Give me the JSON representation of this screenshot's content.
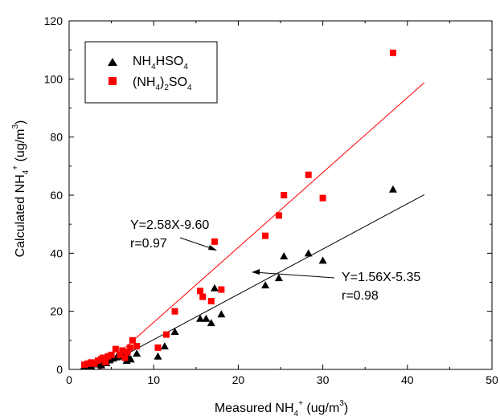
{
  "chart_data": {
    "type": "scatter",
    "xlabel": "Measured NH4+ (ug/m3)",
    "ylabel": "Calculated NH4+ (ug/m3)",
    "xlim": [
      0,
      50
    ],
    "ylim": [
      0,
      120
    ],
    "xticks": [
      0,
      10,
      20,
      30,
      40,
      50
    ],
    "yticks": [
      0,
      20,
      40,
      60,
      80,
      100,
      120
    ],
    "grid": false,
    "legend_position": "top-left",
    "series": [
      {
        "name": "NH4HSO4",
        "color": "#000000",
        "marker": "triangle",
        "points": [
          [
            1.8,
            1.2
          ],
          [
            2.2,
            1.5
          ],
          [
            2.6,
            1.2
          ],
          [
            3.0,
            1.8
          ],
          [
            3.4,
            2.0
          ],
          [
            3.8,
            1.5
          ],
          [
            4.1,
            2.5
          ],
          [
            4.4,
            2.2
          ],
          [
            4.8,
            3.2
          ],
          [
            5.2,
            3.8
          ],
          [
            5.6,
            4.2
          ],
          [
            6.0,
            5.0
          ],
          [
            6.4,
            4.5
          ],
          [
            6.8,
            3.0
          ],
          [
            7.0,
            4.2
          ],
          [
            7.3,
            3.5
          ],
          [
            8.0,
            5.5
          ],
          [
            10.5,
            4.5
          ],
          [
            11.3,
            8.0
          ],
          [
            12.5,
            13.0
          ],
          [
            15.5,
            17.5
          ],
          [
            16.2,
            17.5
          ],
          [
            16.8,
            16.0
          ],
          [
            17.2,
            28.0
          ],
          [
            18.0,
            19.0
          ],
          [
            23.2,
            29.0
          ],
          [
            24.8,
            31.5
          ],
          [
            25.4,
            39.0
          ],
          [
            28.3,
            40.0
          ],
          [
            30.0,
            37.5
          ],
          [
            38.3,
            62.0
          ]
        ]
      },
      {
        "name": "(NH4)2SO4",
        "color": "#ff0000",
        "marker": "square",
        "points": [
          [
            1.8,
            1.6
          ],
          [
            2.2,
            2.0
          ],
          [
            2.6,
            2.4
          ],
          [
            3.0,
            2.0
          ],
          [
            3.4,
            3.0
          ],
          [
            3.8,
            3.5
          ],
          [
            4.0,
            4.0
          ],
          [
            4.3,
            2.5
          ],
          [
            4.6,
            4.5
          ],
          [
            5.0,
            5.0
          ],
          [
            5.5,
            7.0
          ],
          [
            6.0,
            5.0
          ],
          [
            6.3,
            6.5
          ],
          [
            6.6,
            4.0
          ],
          [
            6.9,
            6.0
          ],
          [
            7.2,
            7.5
          ],
          [
            7.5,
            10.0
          ],
          [
            8.0,
            8.0
          ],
          [
            10.5,
            7.5
          ],
          [
            11.5,
            12.0
          ],
          [
            12.5,
            20.0
          ],
          [
            15.5,
            27.0
          ],
          [
            15.8,
            25.0
          ],
          [
            16.8,
            23.5
          ],
          [
            17.2,
            44.0
          ],
          [
            18.0,
            27.5
          ],
          [
            23.2,
            46.0
          ],
          [
            24.8,
            53.0
          ],
          [
            25.4,
            60.0
          ],
          [
            28.3,
            67.0
          ],
          [
            30.0,
            59.0
          ],
          [
            38.3,
            109.0
          ]
        ]
      }
    ],
    "fit_lines": [
      {
        "series": "NH4HSO4",
        "slope": 1.56,
        "intercept": -5.35,
        "x_range": [
          3.43,
          42
        ],
        "color": "#000000",
        "label_eq": "Y=1.56X-5.35",
        "label_r": "r=0.98"
      },
      {
        "series": "(NH4)2SO4",
        "slope": 2.58,
        "intercept": -9.6,
        "x_range": [
          3.72,
          42
        ],
        "color": "#ff0000",
        "label_eq": "Y=2.58X-9.60",
        "label_r": "r=0.97"
      }
    ],
    "annotations": [
      {
        "text": "Y=2.58X-9.60",
        "r": "r=0.97",
        "pointer_target": [
          17.5,
          35.5
        ]
      },
      {
        "text": "Y=1.56X-5.35",
        "r": "r=0.98",
        "pointer_target": [
          26.0,
          35.0
        ]
      }
    ]
  },
  "labels": {
    "x_title_main": "Measured NH",
    "x_title_sub": "4",
    "x_title_sup": "+",
    "x_title_unit": " (ug/m",
    "x_title_unit_sup": "3",
    "x_title_close": ")",
    "y_title_main": "Calculated NH",
    "y_title_sub": "4",
    "y_title_sup": "+",
    "y_title_unit": " (ug/m",
    "y_title_unit_sup": "3",
    "y_title_close": ")",
    "legend1_a": "NH",
    "legend1_sub": "4",
    "legend1_b": "HSO",
    "legend1_sub2": "4",
    "legend2_a": "(NH",
    "legend2_sub": "4",
    "legend2_b": ")",
    "legend2_sub2": "2",
    "legend2_c": "SO",
    "legend2_sub3": "4"
  }
}
